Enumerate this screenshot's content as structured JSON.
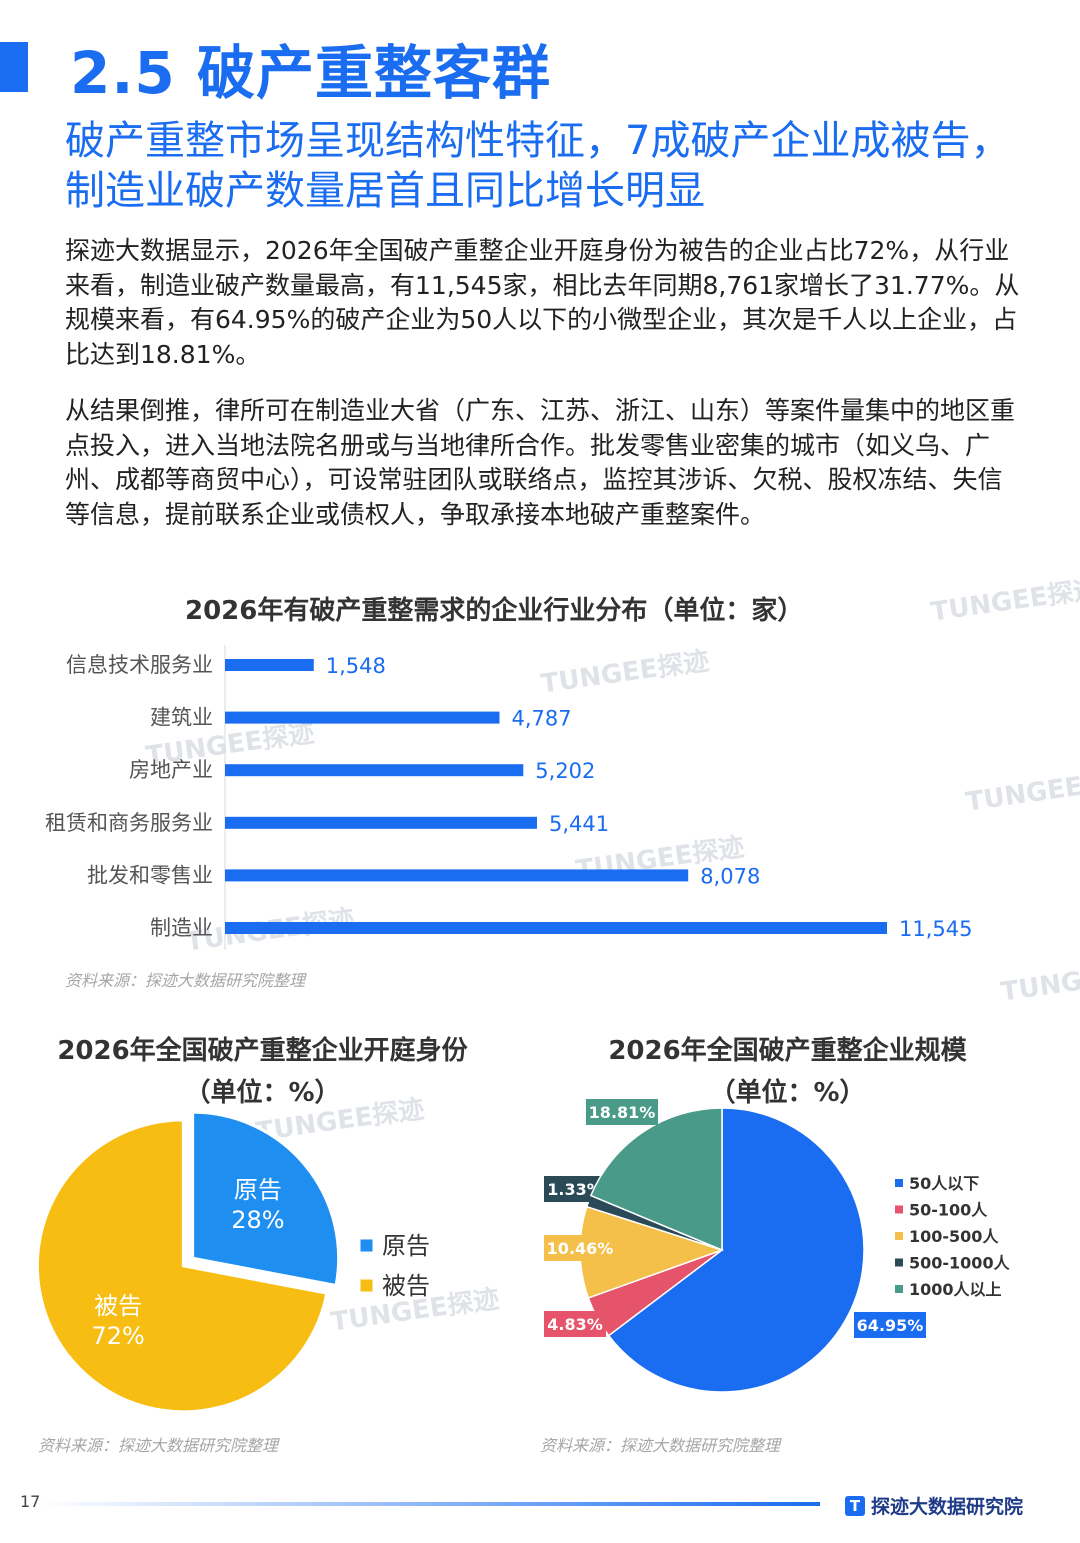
{
  "header": {
    "section_title": "2.5 破产重整客群",
    "subtitle": "破产重整市场呈现结构性特征，7成破产企业成被告，制造业破产数量居首且同比增长明显"
  },
  "paragraphs": [
    "探迹大数据显示，2026年全国破产重整企业开庭身份为被告的企业占比72%，从行业来看，制造业破产数量最高，有11,545家，相比去年同期8,761家增长了31.77%。从规模来看，有64.95%的破产企业为50人以下的小微型企业，其次是千人以上企业，占比达到18.81%。",
    "从结果倒推，律所可在制造业大省（广东、江苏、浙江、山东）等案件量集中的地区重点投入，进入当地法院名册或与当地律所合作。批发零售业密集的城市（如义乌、广州、成都等商贸中心），可设常驻团队或联络点，监控其涉诉、欠税、股权冻结、失信等信息，提前联系企业或债权人，争取承接本地破产重整案件。"
  ],
  "watermark": "TUNGEE探迹",
  "source_note": "资料来源：探迹大数据研究院整理",
  "chart_data": [
    {
      "type": "bar",
      "orientation": "horizontal",
      "title": "2026年有破产重整需求的企业行业分布（单位：家）",
      "categories": [
        "信息技术服务业",
        "建筑业",
        "房地产业",
        "租赁和商务服务业",
        "批发和零售业",
        "制造业"
      ],
      "values": [
        1548,
        4787,
        5202,
        5441,
        8078,
        11545
      ],
      "value_labels": [
        "1,548",
        "4,787",
        "5,202",
        "5,441",
        "8,078",
        "11,545"
      ],
      "color": "#1a6cf0",
      "grid": false
    },
    {
      "type": "pie",
      "title": "2026年全国破产重整企业开庭身份",
      "title_line2": "（单位：%）",
      "slices": [
        {
          "name": "原告",
          "value": 28,
          "label": "28%",
          "color": "#1f8ef1"
        },
        {
          "name": "被告",
          "value": 72,
          "label": "72%",
          "color": "#f7bd12"
        }
      ],
      "legend": [
        "原告",
        "被告"
      ],
      "legend_position": "right"
    },
    {
      "type": "pie",
      "title": "2026年全国破产重整企业规模",
      "title_line2": "（单位：%）",
      "slices": [
        {
          "name": "50人以下",
          "value": 64.95,
          "label": "64.95%",
          "color": "#1a6cf0"
        },
        {
          "name": "50-100人",
          "value": 4.83,
          "label": "4.83%",
          "color": "#e5546b"
        },
        {
          "name": "100-500人",
          "value": 10.46,
          "label": "10.46%",
          "color": "#f5c04a"
        },
        {
          "name": "500-1000人",
          "value": 1.33,
          "label": "1.33%",
          "color": "#2b4a57"
        },
        {
          "name": "1000人以上",
          "value": 18.81,
          "label": "18.81%",
          "color": "#4a9a8a"
        }
      ],
      "legend": [
        "50人以下",
        "50-100人",
        "100-500人",
        "500-1000人",
        "1000人以上"
      ],
      "legend_position": "right"
    }
  ],
  "footer": {
    "page_number": "17",
    "logo_glyph": "T",
    "brand": "探迹大数据研究院"
  }
}
